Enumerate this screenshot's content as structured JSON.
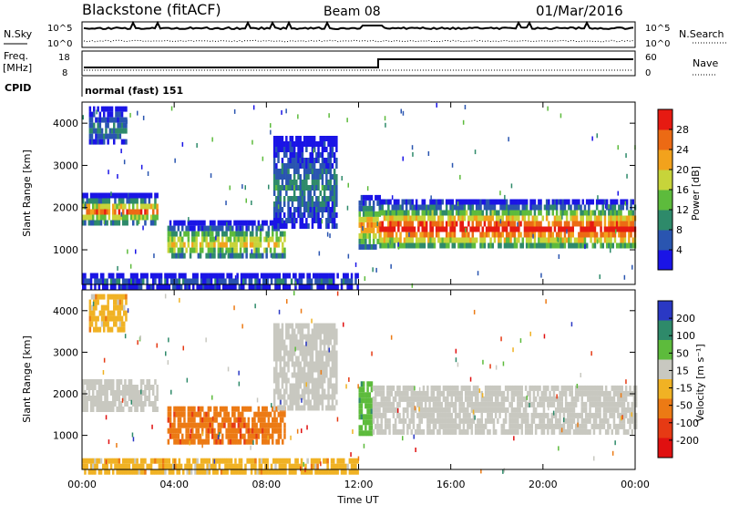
{
  "header": {
    "station": "Blackstone (fitACF)",
    "beam": "Beam 08",
    "date": "01/Mar/2016"
  },
  "top_panels": {
    "nsky_label": "N.Sky",
    "nsky_ticks": [
      "10^5",
      "10^0"
    ],
    "nsearch_label": "N.Search",
    "freq_label_1": "Freq.",
    "freq_label_2": "[MHz]",
    "freq_ticks": [
      "18",
      "8"
    ],
    "nave_label": "Nave",
    "nave_ticks": [
      "60",
      "0"
    ],
    "cpid_label": "CPID",
    "cpid_text": "normal (fast) 151"
  },
  "chart_data": [
    {
      "type": "heatmap",
      "panel": "power",
      "ylabel": "Slant Range [km]",
      "xlabel": "",
      "x_ticks": [
        "00:00",
        "04:00",
        "08:00",
        "12:00",
        "16:00",
        "20:00",
        "00:00"
      ],
      "xlim_hours": [
        0,
        24
      ],
      "y_ticks": [
        1000,
        2000,
        3000,
        4000
      ],
      "ylim": [
        180,
        4500
      ],
      "colorbar_label": "Power [dB]",
      "colorbar_ticks": [
        4,
        8,
        12,
        16,
        20,
        24,
        28
      ],
      "colorbar_range": [
        0,
        32
      ],
      "colors": [
        "#1a14e6",
        "#2a55b0",
        "#2e8a6a",
        "#5dbb3c",
        "#c7d43a",
        "#f2a21c",
        "#ec6a14",
        "#e61a12"
      ],
      "regions": [
        {
          "t0": 0.0,
          "t1": 3.3,
          "r0": 1650,
          "r1": 2350,
          "peak": 26
        },
        {
          "t0": 0.3,
          "t1": 1.9,
          "r0": 3550,
          "r1": 4400,
          "peak": 9
        },
        {
          "t0": 3.7,
          "t1": 8.8,
          "r0": 800,
          "r1": 1700,
          "peak": 21
        },
        {
          "t0": 8.3,
          "t1": 11.0,
          "r0": 1600,
          "r1": 3700,
          "peak": 10
        },
        {
          "t0": 12.0,
          "t1": 12.9,
          "r0": 1050,
          "r1": 2300,
          "peak": 24
        },
        {
          "t0": 12.9,
          "t1": 24.0,
          "r0": 1050,
          "r1": 2200,
          "peak": 32
        },
        {
          "t0": 0.0,
          "t1": 12.0,
          "r0": 180,
          "r1": 450,
          "peak": 7
        }
      ]
    },
    {
      "type": "heatmap",
      "panel": "velocity",
      "ylabel": "Slant Range [km]",
      "xlabel": "Time UT",
      "x_ticks": [
        "00:00",
        "04:00",
        "08:00",
        "12:00",
        "16:00",
        "20:00",
        "00:00"
      ],
      "xlim_hours": [
        0,
        24
      ],
      "y_ticks": [
        1000,
        2000,
        3000,
        4000
      ],
      "ylim": [
        180,
        4500
      ],
      "colorbar_label": "Velocity [m s⁻¹]",
      "colorbar_ticks": [
        "200",
        "100",
        "50",
        "15",
        "-15",
        "-50",
        "-100",
        "-200"
      ],
      "colors": [
        "#2a38c4",
        "#2e8a6a",
        "#5dbb3c",
        "#c8c8c0",
        "#f0b224",
        "#ec7a14",
        "#e63a14",
        "#e01010"
      ],
      "regions": [
        {
          "t0": 0.0,
          "t1": 3.3,
          "r0": 1650,
          "r1": 2350,
          "v": "ground"
        },
        {
          "t0": 0.3,
          "t1": 1.9,
          "r0": 3550,
          "r1": 4400,
          "v": -40
        },
        {
          "t0": 3.7,
          "t1": 8.8,
          "r0": 800,
          "r1": 1700,
          "v": -90
        },
        {
          "t0": 8.3,
          "t1": 11.0,
          "r0": 1600,
          "r1": 3700,
          "v": "ground"
        },
        {
          "t0": 12.0,
          "t1": 12.6,
          "r0": 1050,
          "r1": 2300,
          "v": 40
        },
        {
          "t0": 12.6,
          "t1": 24.0,
          "r0": 1050,
          "r1": 2200,
          "v": "ground"
        },
        {
          "t0": 0.0,
          "t1": 12.0,
          "r0": 180,
          "r1": 450,
          "v": -30
        }
      ]
    }
  ]
}
